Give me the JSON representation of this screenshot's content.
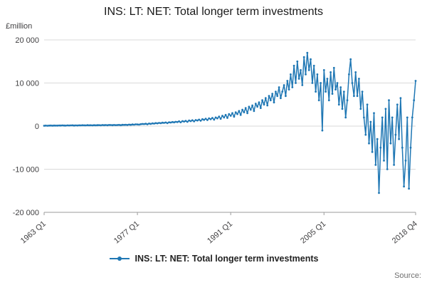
{
  "title": "INS: LT: NET: Total longer term investments",
  "y_axis_label": "£million",
  "legend": {
    "label": "INS: LT: NET: Total longer term investments"
  },
  "source_label": "Source:",
  "colors": {
    "line": "#1f77b4",
    "grid": "#d9d9d9",
    "axis": "#9b9b9b",
    "text": "#414042"
  },
  "chart_data": {
    "type": "line",
    "frequency": "quarterly",
    "x_start": "1963 Q1",
    "x_end": "2018 Q4",
    "ylim": [
      -20000,
      20000
    ],
    "yticks": [
      {
        "value": 20000,
        "label": "20 000"
      },
      {
        "value": 10000,
        "label": "10 000"
      },
      {
        "value": 0,
        "label": "0"
      },
      {
        "value": -10000,
        "label": "-10 000"
      },
      {
        "value": -20000,
        "label": "-20 000"
      }
    ],
    "xticks": [
      {
        "index": 0,
        "label": "1963 Q1"
      },
      {
        "index": 56,
        "label": "1977 Q1"
      },
      {
        "index": 112,
        "label": "1991 Q1"
      },
      {
        "index": 168,
        "label": "2005 Q1"
      },
      {
        "index": 223,
        "label": "2018 Q4"
      }
    ],
    "series_name": "INS: LT: NET: Total longer term investments",
    "values": [
      80,
      120,
      90,
      110,
      130,
      100,
      140,
      120,
      110,
      150,
      130,
      160,
      140,
      120,
      170,
      150,
      160,
      180,
      140,
      170,
      150,
      190,
      160,
      200,
      180,
      160,
      210,
      190,
      200,
      170,
      220,
      180,
      210,
      230,
      190,
      240,
      220,
      250,
      200,
      260,
      240,
      210,
      270,
      230,
      250,
      280,
      220,
      300,
      280,
      320,
      260,
      350,
      300,
      380,
      330,
      420,
      400,
      350,
      450,
      500,
      480,
      550,
      430,
      600,
      520,
      650,
      580,
      700,
      640,
      750,
      680,
      800,
      750,
      850,
      700,
      900,
      820,
      950,
      880,
      1000,
      950,
      1100,
      900,
      1150,
      1050,
      1200,
      1000,
      1300,
      1150,
      1350,
      1100,
      1400,
      1300,
      1500,
      1250,
      1600,
      1450,
      1700,
      1400,
      1800,
      1600,
      1900,
      1500,
      2000,
      1800,
      2200,
      1700,
      2400,
      2000,
      2600,
      1900,
      2800,
      2400,
      3000,
      2200,
      3200,
      2800,
      3500,
      2600,
      3800,
      3200,
      4200,
      3000,
      4500,
      3800,
      4800,
      3500,
      5200,
      4500,
      5500,
      4200,
      6000,
      5000,
      6500,
      4800,
      7000,
      6000,
      7500,
      5500,
      8000,
      7000,
      9000,
      6500,
      8000,
      9500,
      7000,
      10500,
      8500,
      12000,
      9000,
      14000,
      10000,
      15000,
      11000,
      13000,
      9500,
      16000,
      12000,
      17000,
      13000,
      15500,
      10000,
      14000,
      8000,
      12000,
      6000,
      10000,
      -1000,
      13000,
      8000,
      11000,
      6000,
      12500,
      7500,
      13500,
      8500,
      10000,
      5000,
      9000,
      4000,
      8000,
      2000,
      6000,
      12000,
      15500,
      10000,
      7000,
      12500,
      7000,
      11000,
      4000,
      8000,
      2000,
      -2000,
      5000,
      -4000,
      1000,
      -6000,
      3000,
      -9000,
      -3000,
      -15500,
      -5000,
      2000,
      -8000,
      4000,
      -10000,
      6000,
      -4000,
      2000,
      -9000,
      -2000,
      5000,
      -3000,
      6500,
      -5000,
      -14000,
      -8000,
      2000,
      -14500,
      -5000,
      2000,
      6000,
      10500
    ]
  }
}
